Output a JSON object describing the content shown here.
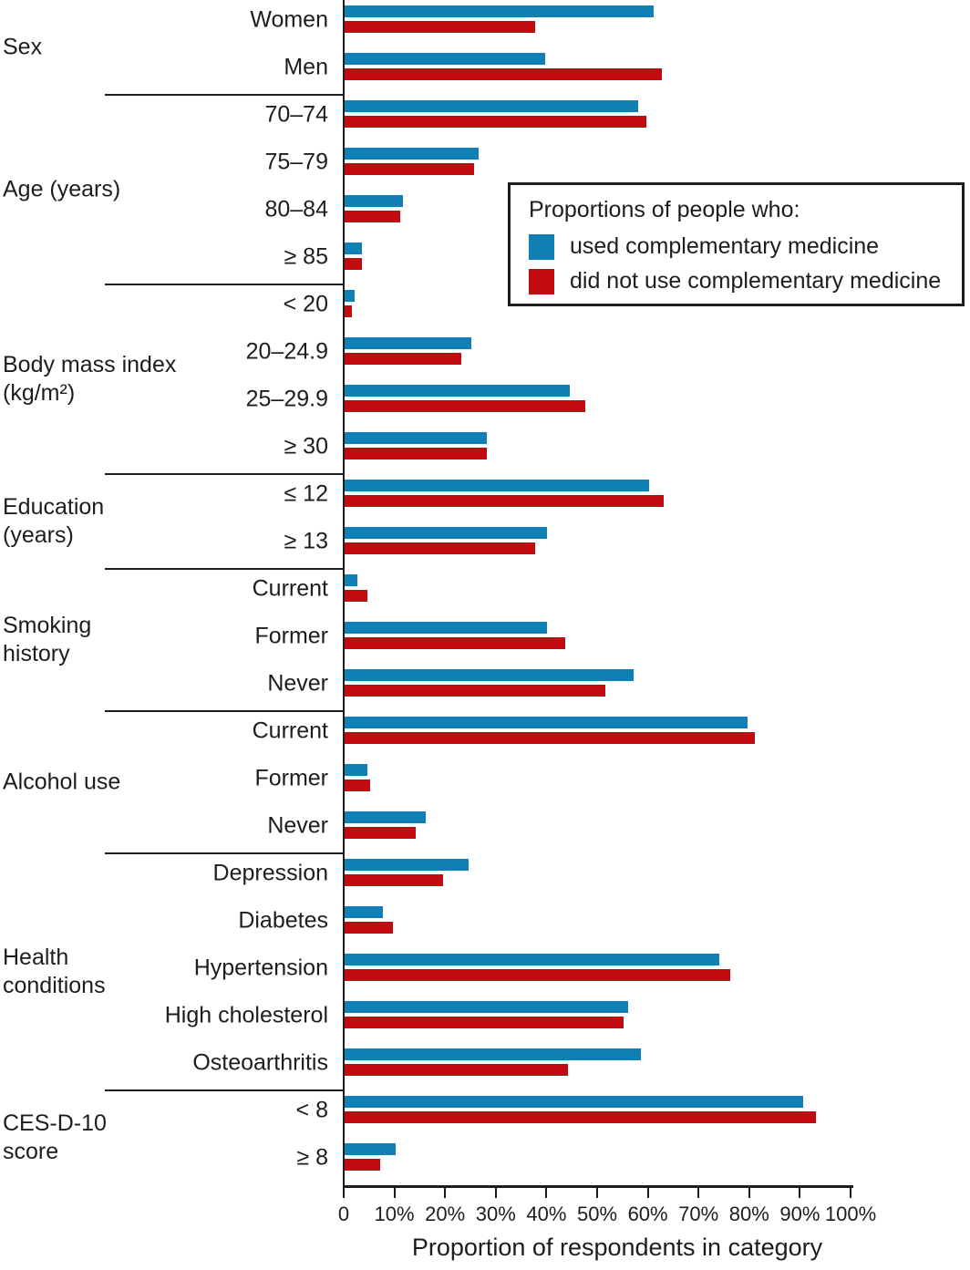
{
  "figure": {
    "x_axis": {
      "title": "Proportion of respondents in category",
      "tick_labels": [
        "0",
        "10%",
        "20%",
        "30%",
        "40%",
        "50%",
        "60%",
        "70%",
        "80%",
        "90%",
        "100%"
      ],
      "min": 0,
      "max": 100
    },
    "legend": {
      "title": "Proportions of people who:",
      "entries": [
        {
          "key": "used",
          "label": "used complementary medicine",
          "color": "#107fb3"
        },
        {
          "key": "not_used",
          "label": "did not use complementary medicine",
          "color": "#c20b10"
        }
      ]
    },
    "axis_color": "#1d1d1b"
  },
  "chart_data": {
    "type": "bar",
    "orientation": "horizontal",
    "xlabel": "Proportion of respondents in category",
    "xlim": [
      0,
      100
    ],
    "grid": false,
    "legend_position": "upper-right-inside",
    "series_names": [
      "used complementary medicine",
      "did not use complementary medicine"
    ],
    "groups": [
      {
        "label": [
          "Sex"
        ],
        "rows": [
          {
            "category": "Women",
            "used": 61,
            "not_used": 37.5
          },
          {
            "category": "Men",
            "used": 39.5,
            "not_used": 62.5
          }
        ]
      },
      {
        "label": [
          "Age (years)"
        ],
        "rows": [
          {
            "category": "70–74",
            "used": 58,
            "not_used": 59.5
          },
          {
            "category": "75–79",
            "used": 26.5,
            "not_used": 25.5
          },
          {
            "category": "80–84",
            "used": 11.5,
            "not_used": 11
          },
          {
            "category": "≥ 85",
            "used": 3.5,
            "not_used": 3.5
          }
        ]
      },
      {
        "label": [
          "Body mass index",
          "(kg/m²)"
        ],
        "rows": [
          {
            "category": "< 20",
            "used": 2,
            "not_used": 1.5
          },
          {
            "category": "20–24.9",
            "used": 25,
            "not_used": 23
          },
          {
            "category": "25–29.9",
            "used": 44.5,
            "not_used": 47.5
          },
          {
            "category": "≥ 30",
            "used": 28,
            "not_used": 28
          }
        ]
      },
      {
        "label": [
          "Education",
          "(years)"
        ],
        "rows": [
          {
            "category": "≤ 12",
            "used": 60,
            "not_used": 63
          },
          {
            "category": "≥ 13",
            "used": 40,
            "not_used": 37.5
          }
        ]
      },
      {
        "label": [
          "Smoking",
          "history"
        ],
        "rows": [
          {
            "category": "Current",
            "used": 2.5,
            "not_used": 4.5
          },
          {
            "category": "Former",
            "used": 40,
            "not_used": 43.5
          },
          {
            "category": "Never",
            "used": 57,
            "not_used": 51.5
          }
        ]
      },
      {
        "label": [
          "Alcohol use"
        ],
        "rows": [
          {
            "category": "Current",
            "used": 79.5,
            "not_used": 81
          },
          {
            "category": "Former",
            "used": 4.5,
            "not_used": 5
          },
          {
            "category": "Never",
            "used": 16,
            "not_used": 14
          }
        ]
      },
      {
        "label": [
          "Health",
          "conditions"
        ],
        "rows": [
          {
            "category": "Depression",
            "used": 24.5,
            "not_used": 19.5
          },
          {
            "category": "Diabetes",
            "used": 7.5,
            "not_used": 9.5
          },
          {
            "category": "Hypertension",
            "used": 74,
            "not_used": 76
          },
          {
            "category": "High cholesterol",
            "used": 56,
            "not_used": 55
          },
          {
            "category": "Osteoarthritis",
            "used": 58.5,
            "not_used": 44
          }
        ]
      },
      {
        "label": [
          "CES-D-10",
          "score"
        ],
        "rows": [
          {
            "category": "< 8",
            "used": 90.5,
            "not_used": 93
          },
          {
            "category": "≥ 8",
            "used": 10,
            "not_used": 7
          }
        ]
      }
    ]
  }
}
